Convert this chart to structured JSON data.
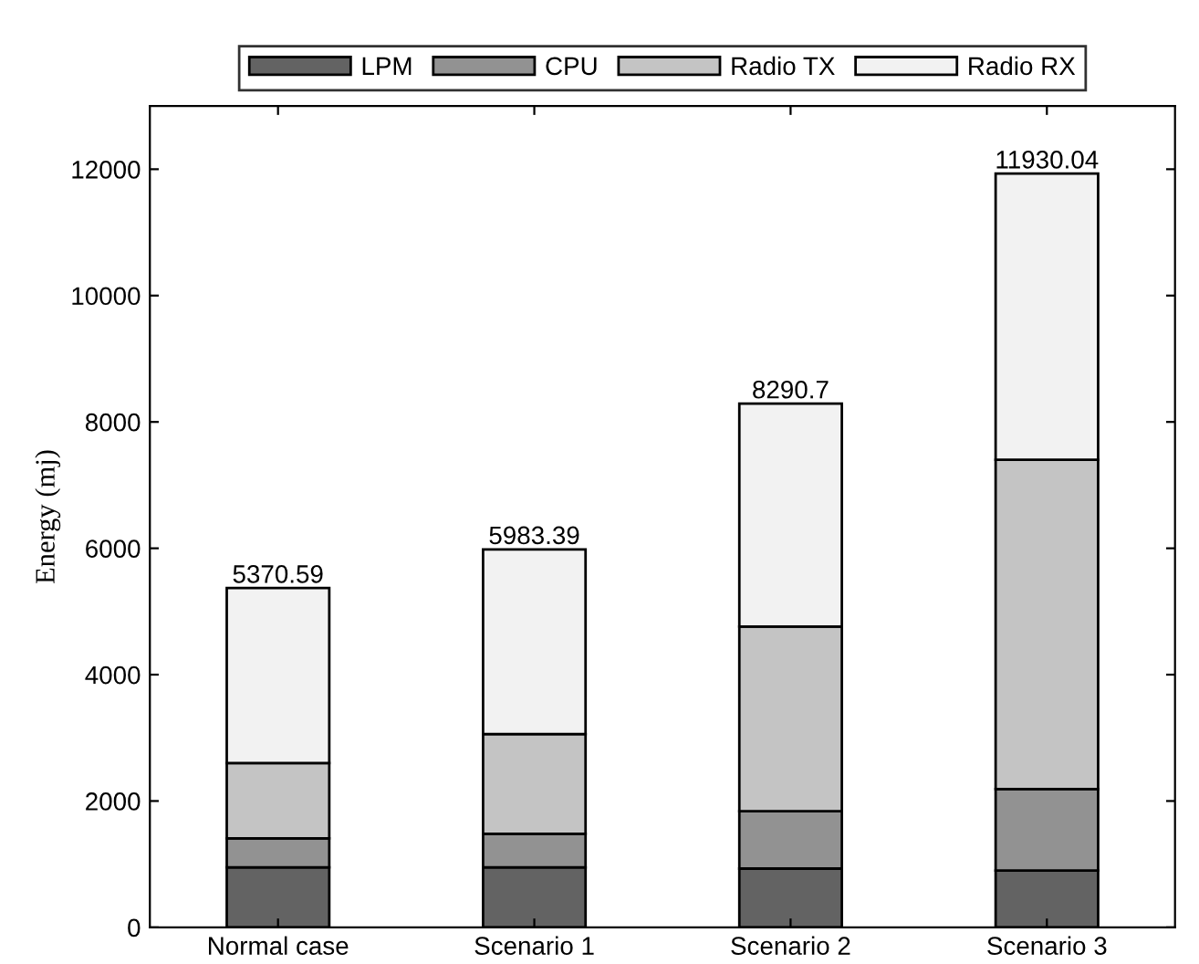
{
  "chart_data": {
    "type": "bar",
    "stacked": true,
    "ylabel": "Energy (mj)",
    "categories": [
      "Normal case",
      "Scenario 1",
      "Scenario 2",
      "Scenario 3"
    ],
    "series": [
      {
        "name": "LPM",
        "color": "#636363",
        "values": [
          950,
          950,
          930,
          900
        ]
      },
      {
        "name": "CPU",
        "color": "#929292",
        "values": [
          460,
          530,
          910,
          1290
        ]
      },
      {
        "name": "Radio TX",
        "color": "#c4c4c4",
        "values": [
          1190,
          1580,
          2920,
          5210
        ]
      },
      {
        "name": "Radio RX",
        "color": "#f2f2f2",
        "values": [
          2770.59,
          2923.39,
          3530.7,
          4530.04
        ]
      }
    ],
    "totals": [
      "5370.59",
      "5983.39",
      "8290.7",
      "11930.04"
    ],
    "ylim": [
      0,
      13000
    ],
    "yticks": [
      0,
      2000,
      4000,
      6000,
      8000,
      10000,
      12000
    ],
    "grid": false,
    "legend": "top"
  }
}
